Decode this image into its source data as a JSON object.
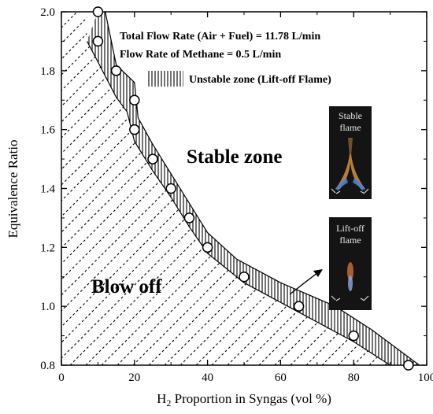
{
  "chart_data": {
    "type": "scatter",
    "title": "",
    "xlabel_prefix": "H",
    "xlabel_sub": "2",
    "xlabel_rest": " Proportion in Syngas (vol %)",
    "ylabel": "Equivalence Ratio",
    "xlim": [
      0,
      100
    ],
    "ylim": [
      0.8,
      2.0
    ],
    "xticks": [
      "0",
      "20",
      "40",
      "60",
      "80",
      "100"
    ],
    "yticks": [
      "0.8",
      "1.0",
      "1.2",
      "1.4",
      "1.6",
      "1.8",
      "2.0"
    ],
    "series": [
      {
        "x": [
          10,
          10,
          15,
          20,
          20,
          25,
          30,
          35,
          40,
          50,
          65,
          80,
          95
        ],
        "y": [
          2.0,
          1.9,
          1.8,
          1.7,
          1.6,
          1.5,
          1.4,
          1.3,
          1.2,
          1.1,
          1.0,
          0.9,
          0.8
        ]
      }
    ],
    "band_lower": [
      [
        7,
        1.9
      ],
      [
        10,
        1.83
      ],
      [
        15,
        1.71
      ],
      [
        18,
        1.66
      ],
      [
        20,
        1.56
      ],
      [
        25,
        1.46
      ],
      [
        30,
        1.37
      ],
      [
        35,
        1.27
      ],
      [
        40,
        1.18
      ],
      [
        50,
        1.08
      ],
      [
        65,
        0.98
      ],
      [
        80,
        0.88
      ],
      [
        90,
        0.8
      ]
    ],
    "band_upper": [
      [
        10,
        2.0
      ],
      [
        12,
        2.0
      ],
      [
        15,
        1.82
      ],
      [
        20,
        1.76
      ],
      [
        21,
        1.64
      ],
      [
        25,
        1.55
      ],
      [
        30,
        1.45
      ],
      [
        35,
        1.35
      ],
      [
        40,
        1.25
      ],
      [
        48,
        1.16
      ],
      [
        60,
        1.08
      ],
      [
        75,
        1.0
      ],
      [
        85,
        0.92
      ],
      [
        98,
        0.8
      ]
    ],
    "annotations": {
      "total_flow": "Total Flow Rate (Air + Fuel) = 11.78 L/min",
      "methane_flow": "Flow Rate of Methane = 0.5 L/min",
      "unstable_legend": "Unstable zone (Lift-off Flame)",
      "stable_zone": "Stable zone",
      "blow_off": "Blow off",
      "stable_flame_line1": "Stable",
      "stable_flame_line2": "flame",
      "liftoff_flame_line1": "Lift-off",
      "liftoff_flame_line2": "flame"
    }
  }
}
